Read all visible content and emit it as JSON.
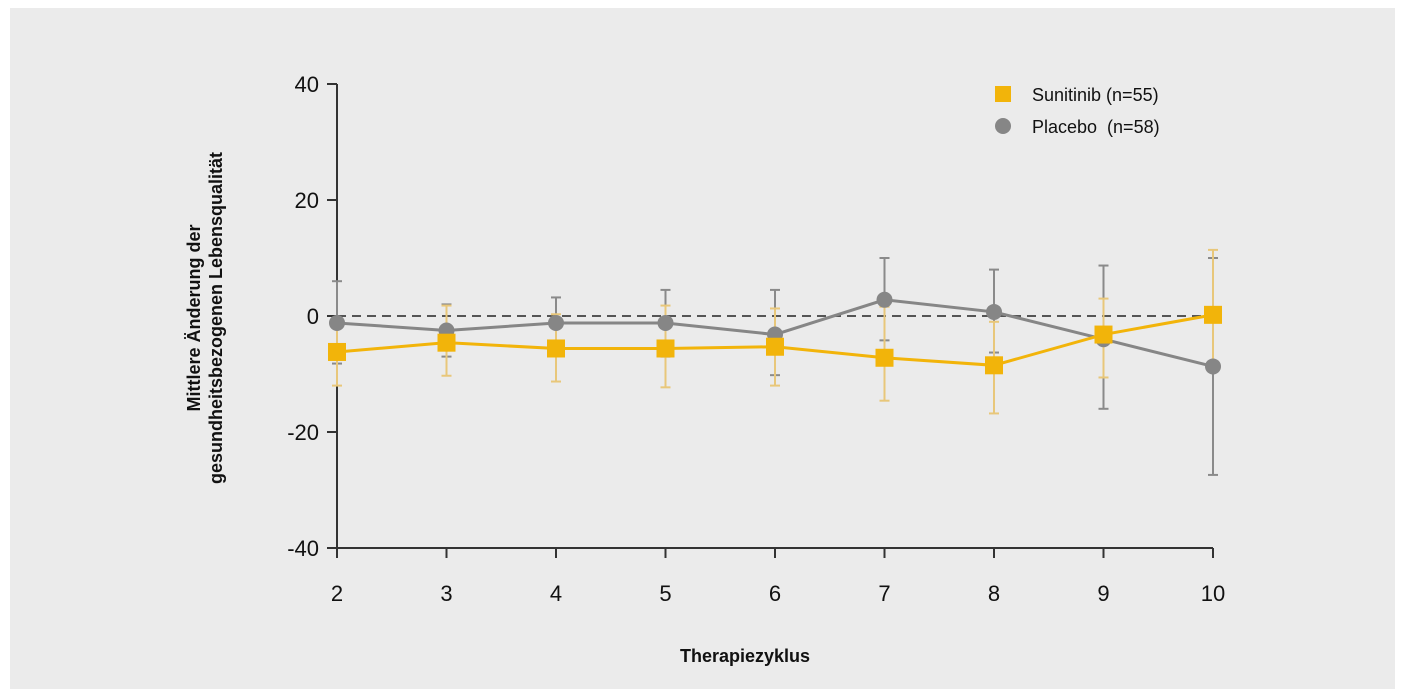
{
  "chart_data": {
    "type": "line",
    "xlabel": "Therapiezyklus",
    "ylabel_line1": "Mittlere Änderung der",
    "ylabel_line2": "gesundheitsbezogenen Lebensqualität",
    "x": [
      2,
      3,
      4,
      5,
      6,
      7,
      8,
      9,
      10
    ],
    "xlim": [
      2,
      10
    ],
    "ylim": [
      -40,
      40
    ],
    "yticks": [
      40,
      20,
      0,
      -20,
      -40
    ],
    "reference_line": 0,
    "legend_position": "top-right",
    "series": [
      {
        "name": "Sunitinib (n=55)",
        "marker": "square",
        "color": "#f2b40a",
        "values": [
          -6.2,
          -4.6,
          -5.6,
          -5.6,
          -5.3,
          -7.2,
          -8.5,
          -3.2,
          0.2
        ],
        "err_low": [
          -12,
          -10.3,
          -11.3,
          -12.3,
          -12,
          -14.6,
          -16.8,
          -10.6,
          -9.5
        ],
        "err_high": [
          -0.3,
          1.8,
          0.3,
          1.8,
          1.3,
          1.6,
          -1,
          3,
          11.4
        ]
      },
      {
        "name": "Placebo  (n=58)",
        "marker": "circle",
        "color": "#868686",
        "values": [
          -1.2,
          -2.5,
          -1.2,
          -1.2,
          -3.2,
          2.8,
          0.7,
          -4,
          -8.7
        ],
        "err_low": [
          -8.2,
          -7,
          -5.5,
          -7,
          -10.2,
          -4.2,
          -6.3,
          -16,
          -27.4
        ],
        "err_high": [
          6,
          2,
          3.2,
          4.5,
          4.5,
          10,
          8,
          8.7,
          10
        ]
      }
    ]
  }
}
